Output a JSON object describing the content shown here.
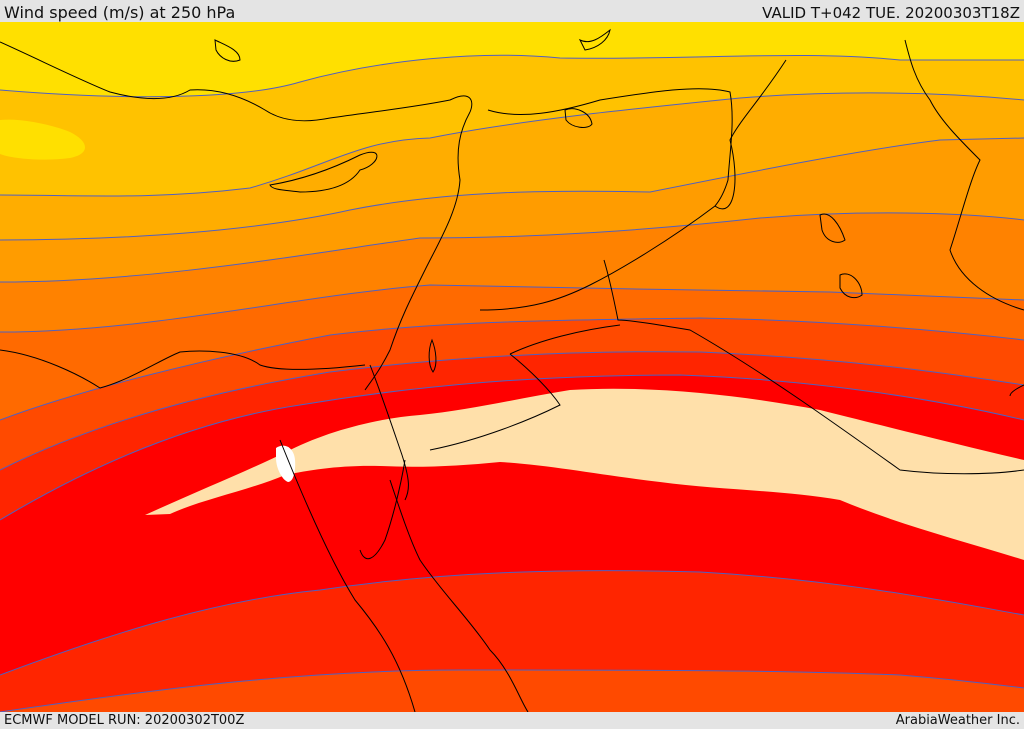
{
  "header": {
    "title": "Wind speed (m/s) at 250 hPa",
    "valid": "VALID T+042 TUE. 20200303T18Z"
  },
  "footer": {
    "model_run": "ECMWF MODEL RUN: 20200302T00Z",
    "provider": "ArabiaWeather Inc."
  },
  "map": {
    "field": "wind speed",
    "units": "m/s",
    "level": "250 hPa",
    "band_colors": [
      "#ffe000",
      "#ffc200",
      "#ffad00",
      "#ff9c00",
      "#ff8200",
      "#ff6a00",
      "#ff4a00",
      "#ff2500",
      "#ff0000",
      "#ffe0aa",
      "#ffffff"
    ],
    "contour_color": "#5060c0",
    "coastline_color": "#000000"
  }
}
